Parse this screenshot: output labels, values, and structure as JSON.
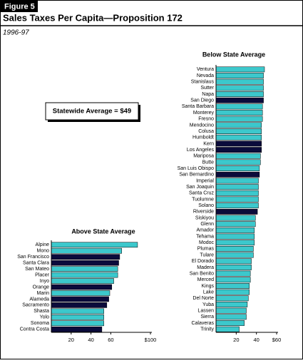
{
  "figure_label": "Figure 5",
  "title": "Sales Taxes Per Capita—Proposition 172",
  "subtitle": "1996-97",
  "annotation": "Statewide Average = $49",
  "chart_data": [
    {
      "type": "barh",
      "title": "Above State Average",
      "categories": [
        "Alpine",
        "Mono",
        "San Francisco",
        "Santa Clara",
        "San Mateo",
        "Placer",
        "Inyo",
        "Orange",
        "Marin",
        "Alameda",
        "Sacramento",
        "Shasta",
        "Yolo",
        "Sonoma",
        "Contra Costa"
      ],
      "values": [
        87,
        71,
        69,
        68,
        67,
        67,
        63,
        61,
        59,
        58,
        56,
        53,
        53,
        53,
        51
      ],
      "colors": [
        "#3cc8cc",
        "#3cc8cc",
        "#0b0b3b",
        "#0b0b3b",
        "#3cc8cc",
        "#3cc8cc",
        "#3cc8cc",
        "#0b0b3b",
        "#3cc8cc",
        "#0b0b3b",
        "#0b0b3b",
        "#3cc8cc",
        "#3cc8cc",
        "#3cc8cc",
        "#0b0b3b"
      ],
      "xlim": [
        0,
        100
      ],
      "xticks": [
        20,
        40,
        60,
        {
          "value": 100,
          "label": "$100"
        }
      ]
    },
    {
      "type": "barh",
      "title": "Below State Average",
      "categories": [
        "Ventura",
        "Nevada",
        "Stanislaus",
        "Sutter",
        "Napa",
        "San Diego",
        "Santa Barbara",
        "Monterey",
        "Fresno",
        "Mendocino",
        "Colusa",
        "Humboldt",
        "Kern",
        "Los Angeles",
        "Mariposa",
        "Butte",
        "San Luis Obispo",
        "San Bernardino",
        "Imperial",
        "San Joaquin",
        "Santa Cruz",
        "Tuolumne",
        "Solano",
        "Riverside",
        "Siskiyou",
        "Glenn",
        "Amador",
        "Tehama",
        "Modoc",
        "Plumas",
        "Tulare",
        "El Dorado",
        "Madera",
        "San Benito",
        "Merced",
        "Kings",
        "Lake",
        "Del Norte",
        "Yuba",
        "Lassen",
        "Sierra",
        "Calaveras",
        "Trinity"
      ],
      "values": [
        48,
        47,
        47,
        47,
        47,
        47,
        46,
        46,
        46,
        45,
        45,
        45,
        45,
        45,
        44,
        44,
        43,
        43,
        42,
        42,
        42,
        42,
        42,
        41,
        39,
        39,
        38,
        38,
        38,
        37,
        37,
        35,
        35,
        34,
        34,
        33,
        33,
        32,
        31,
        30,
        30,
        28,
        23
      ],
      "colors": [
        "#3cc8cc",
        "#3cc8cc",
        "#3cc8cc",
        "#3cc8cc",
        "#3cc8cc",
        "#0b0b3b",
        "#3cc8cc",
        "#3cc8cc",
        "#3cc8cc",
        "#3cc8cc",
        "#3cc8cc",
        "#3cc8cc",
        "#0b0b3b",
        "#0b0b3b",
        "#3cc8cc",
        "#3cc8cc",
        "#3cc8cc",
        "#0b0b3b",
        "#3cc8cc",
        "#3cc8cc",
        "#3cc8cc",
        "#3cc8cc",
        "#3cc8cc",
        "#0b0b3b",
        "#3cc8cc",
        "#3cc8cc",
        "#3cc8cc",
        "#3cc8cc",
        "#3cc8cc",
        "#3cc8cc",
        "#3cc8cc",
        "#3cc8cc",
        "#3cc8cc",
        "#3cc8cc",
        "#3cc8cc",
        "#3cc8cc",
        "#3cc8cc",
        "#3cc8cc",
        "#3cc8cc",
        "#3cc8cc",
        "#3cc8cc",
        "#3cc8cc",
        "#3cc8cc"
      ],
      "xlim": [
        0,
        60
      ],
      "xticks": [
        20,
        40,
        {
          "value": 60,
          "label": "$60"
        }
      ]
    }
  ]
}
